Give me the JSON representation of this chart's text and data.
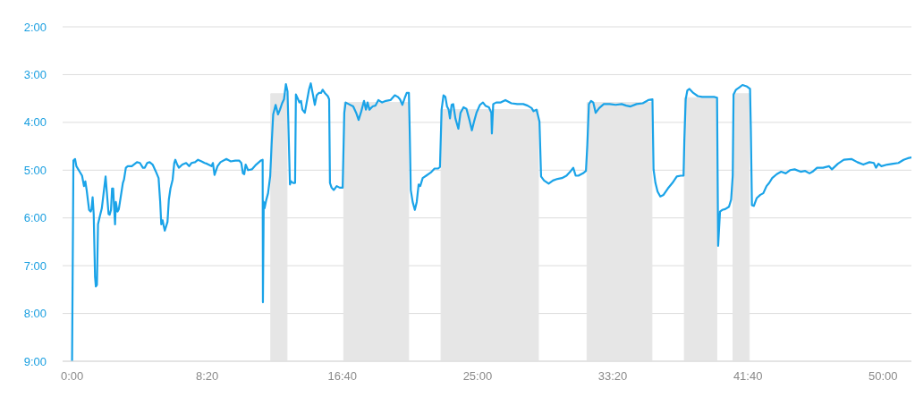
{
  "chart_data": {
    "type": "line",
    "xlim": [
      -35,
      3105
    ],
    "ylim": [
      540,
      120
    ],
    "xticks": [
      {
        "value": 0,
        "label": "0:00"
      },
      {
        "value": 500,
        "label": "8:20"
      },
      {
        "value": 1000,
        "label": "16:40"
      },
      {
        "value": 1500,
        "label": "25:00"
      },
      {
        "value": 2000,
        "label": "33:20"
      },
      {
        "value": 2500,
        "label": "41:40"
      },
      {
        "value": 3000,
        "label": "50:00"
      }
    ],
    "yticks": [
      {
        "value": 120,
        "label": "2:00"
      },
      {
        "value": 180,
        "label": "3:00"
      },
      {
        "value": 240,
        "label": "4:00"
      },
      {
        "value": 300,
        "label": "5:00"
      },
      {
        "value": 360,
        "label": "6:00"
      },
      {
        "value": 420,
        "label": "7:00"
      },
      {
        "value": 480,
        "label": "8:00"
      },
      {
        "value": 540,
        "label": "9:00"
      }
    ],
    "grid": "y",
    "series": [
      {
        "type": "area",
        "color": "#e6e6e6",
        "x": [
          735,
          735,
          795,
          795,
          1005,
          1005,
          1245,
          1245,
          1365,
          1365,
          1725,
          1725,
          1905,
          1905,
          2145,
          2145,
          2265,
          2265,
          2385,
          2385,
          2445,
          2445,
          2505,
          2505
        ],
        "values": [
          540,
          204,
          204,
          540,
          540,
          215,
          215,
          540,
          540,
          224,
          224,
          540,
          540,
          215,
          215,
          540,
          540,
          209,
          209,
          540,
          540,
          204,
          204,
          540
        ]
      },
      {
        "color": "#1aa3e8",
        "x": [
          0,
          5,
          11,
          16,
          30,
          37,
          44,
          49,
          54,
          63,
          69,
          72,
          76,
          80,
          85,
          88,
          92,
          96,
          102,
          110,
          118,
          124,
          128,
          135,
          139,
          144,
          148,
          152,
          155,
          159,
          162,
          168,
          173,
          188,
          192,
          199,
          206,
          221,
          240,
          251,
          262,
          269,
          278,
          287,
          298,
          309,
          320,
          326,
          330,
          335,
          339,
          343,
          353,
          358,
          364,
          372,
          378,
          382,
          389,
          395,
          408,
          422,
          433,
          442,
          455,
          466,
          479,
          490,
          499,
          516,
          521,
          527,
          538,
          549,
          571,
          587,
          604,
          618,
          626,
          632,
          637,
          642,
          651,
          665,
          681,
          698,
          705,
          706,
          709,
          712,
          718,
          725,
          733,
          738,
          744,
          753,
          762,
          769,
          777,
          784,
          791,
          797,
          806,
          810,
          817,
          825,
          828,
          836,
          841,
          847,
          852,
          861,
          869,
          877,
          883,
          891,
          898,
          905,
          913,
          921,
          927,
          935,
          946,
          951,
          954,
          960,
          968,
          979,
          990,
          1001,
          1007,
          1012,
          1023,
          1040,
          1051,
          1060,
          1070,
          1080,
          1087,
          1093,
          1100,
          1112,
          1122,
          1133,
          1147,
          1161,
          1178,
          1194,
          1205,
          1213,
          1222,
          1231,
          1238,
          1246,
          1249,
          1253,
          1260,
          1268,
          1275,
          1282,
          1288,
          1297,
          1310,
          1327,
          1341,
          1354,
          1361,
          1367,
          1374,
          1381,
          1387,
          1393,
          1398,
          1404,
          1410,
          1418,
          1429,
          1437,
          1448,
          1459,
          1470,
          1479,
          1487,
          1496,
          1509,
          1520,
          1529,
          1542,
          1551,
          1553,
          1558,
          1569,
          1586,
          1603,
          1625,
          1647,
          1669,
          1685,
          1700,
          1707,
          1718,
          1724,
          1729,
          1735,
          1746,
          1763,
          1779,
          1796,
          1812,
          1829,
          1845,
          1854,
          1863,
          1873,
          1890,
          1901,
          1906,
          1912,
          1920,
          1928,
          1937,
          1950,
          1967,
          1989,
          2011,
          2033,
          2050,
          2066,
          2088,
          2111,
          2127,
          2132,
          2147,
          2151,
          2158,
          2166,
          2176,
          2188,
          2204,
          2221,
          2237,
          2251,
          2262,
          2265,
          2270,
          2276,
          2284,
          2298,
          2315,
          2331,
          2353,
          2375,
          2386,
          2390,
          2397,
          2405,
          2416,
          2430,
          2438,
          2444,
          2447,
          2456,
          2469,
          2480,
          2497,
          2508,
          2511,
          2515,
          2522,
          2533,
          2546,
          2557,
          2569,
          2579,
          2590,
          2607,
          2623,
          2640,
          2656,
          2673,
          2695,
          2712,
          2728,
          2739,
          2756,
          2778,
          2800,
          2811,
          2833,
          2855,
          2883,
          2905,
          2927,
          2950,
          2966,
          2974,
          2983,
          2994,
          3016,
          3037,
          3057,
          3076,
          3092,
          3105
        ],
        "values": [
          540,
          288,
          286,
          295,
          303,
          307,
          320,
          314,
          325,
          350,
          352,
          349,
          334,
          355,
          434,
          446,
          444,
          368,
          359,
          348,
          325,
          308,
          325,
          355,
          356,
          350,
          323,
          323,
          344,
          368,
          340,
          352,
          349,
          316,
          312,
          297,
          295,
          295,
          290,
          291,
          297,
          297,
          291,
          290,
          293,
          301,
          310,
          340,
          368,
          363,
          370,
          376,
          365,
          337,
          323,
          312,
          291,
          287,
          293,
          297,
          293,
          291,
          295,
          291,
          290,
          287,
          289,
          291,
          292,
          295,
          291,
          306,
          295,
          290,
          286,
          289,
          288,
          288,
          291,
          304,
          305,
          293,
          300,
          299,
          293,
          288,
          287,
          466,
          340,
          348,
          338,
          329,
          307,
          269,
          230,
          218,
          230,
          224,
          216,
          211,
          192,
          201,
          318,
          314,
          316,
          316,
          205,
          211,
          215,
          213,
          224,
          228,
          213,
          198,
          191,
          205,
          218,
          206,
          203,
          203,
          199,
          203,
          207,
          211,
          316,
          322,
          325,
          320,
          322,
          322,
          228,
          215,
          217,
          220,
          228,
          237,
          226,
          213,
          224,
          215,
          224,
          220,
          219,
          212,
          215,
          213,
          212,
          206,
          208,
          211,
          218,
          209,
          203,
          203,
          250,
          325,
          340,
          350,
          340,
          318,
          320,
          310,
          307,
          303,
          298,
          298,
          296,
          224,
          206,
          208,
          220,
          224,
          235,
          218,
          217,
          235,
          248,
          228,
          221,
          223,
          237,
          250,
          239,
          228,
          218,
          215,
          219,
          221,
          228,
          254,
          217,
          215,
          215,
          212,
          216,
          217,
          217,
          219,
          222,
          226,
          224,
          232,
          239,
          308,
          313,
          317,
          313,
          311,
          310,
          307,
          301,
          297,
          307,
          307,
          304,
          301,
          269,
          217,
          213,
          215,
          228,
          222,
          217,
          217,
          218,
          217,
          219,
          220,
          217,
          216,
          213,
          212,
          211,
          299,
          316,
          327,
          333,
          331,
          323,
          316,
          308,
          307,
          307,
          262,
          211,
          200,
          198,
          203,
          207,
          208,
          208,
          208,
          209,
          395,
          352,
          350,
          349,
          346,
          337,
          307,
          205,
          199,
          196,
          193,
          195,
          198,
          250,
          344,
          345,
          335,
          331,
          329,
          320,
          316,
          310,
          305,
          302,
          304,
          300,
          299,
          302,
          301,
          304,
          302,
          297,
          297,
          295,
          299,
          292,
          287,
          286,
          290,
          293,
          290,
          291,
          297,
          292,
          295,
          293,
          292,
          291,
          287,
          285,
          284
        ]
      }
    ]
  }
}
